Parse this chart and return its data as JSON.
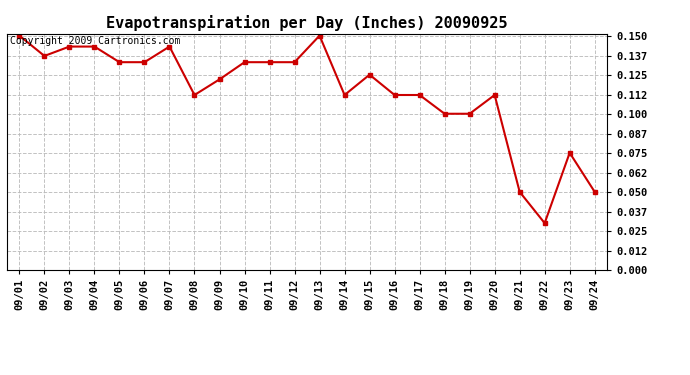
{
  "title": "Evapotranspiration per Day (Inches) 20090925",
  "copyright_text": "Copyright 2009 Cartronics.com",
  "x_labels": [
    "09/01",
    "09/02",
    "09/03",
    "09/04",
    "09/05",
    "09/06",
    "09/07",
    "09/08",
    "09/09",
    "09/10",
    "09/11",
    "09/12",
    "09/13",
    "09/14",
    "09/15",
    "09/16",
    "09/17",
    "09/18",
    "09/19",
    "09/20",
    "09/21",
    "09/22",
    "09/23",
    "09/24"
  ],
  "y_values": [
    0.15,
    0.137,
    0.143,
    0.143,
    0.133,
    0.133,
    0.143,
    0.112,
    0.122,
    0.133,
    0.133,
    0.133,
    0.15,
    0.112,
    0.125,
    0.112,
    0.112,
    0.1,
    0.1,
    0.112,
    0.05,
    0.03,
    0.075,
    0.05
  ],
  "line_color": "#cc0000",
  "marker": "s",
  "marker_size": 3,
  "line_width": 1.5,
  "background_color": "#ffffff",
  "grid_color": "#bbbbbb",
  "ylim_min": 0.0,
  "ylim_max": 0.1512,
  "ytick_values": [
    0.0,
    0.012,
    0.025,
    0.037,
    0.05,
    0.062,
    0.075,
    0.087,
    0.1,
    0.112,
    0.125,
    0.137,
    0.15
  ],
  "title_fontsize": 11,
  "tick_fontsize": 7.5,
  "copyright_fontsize": 7
}
